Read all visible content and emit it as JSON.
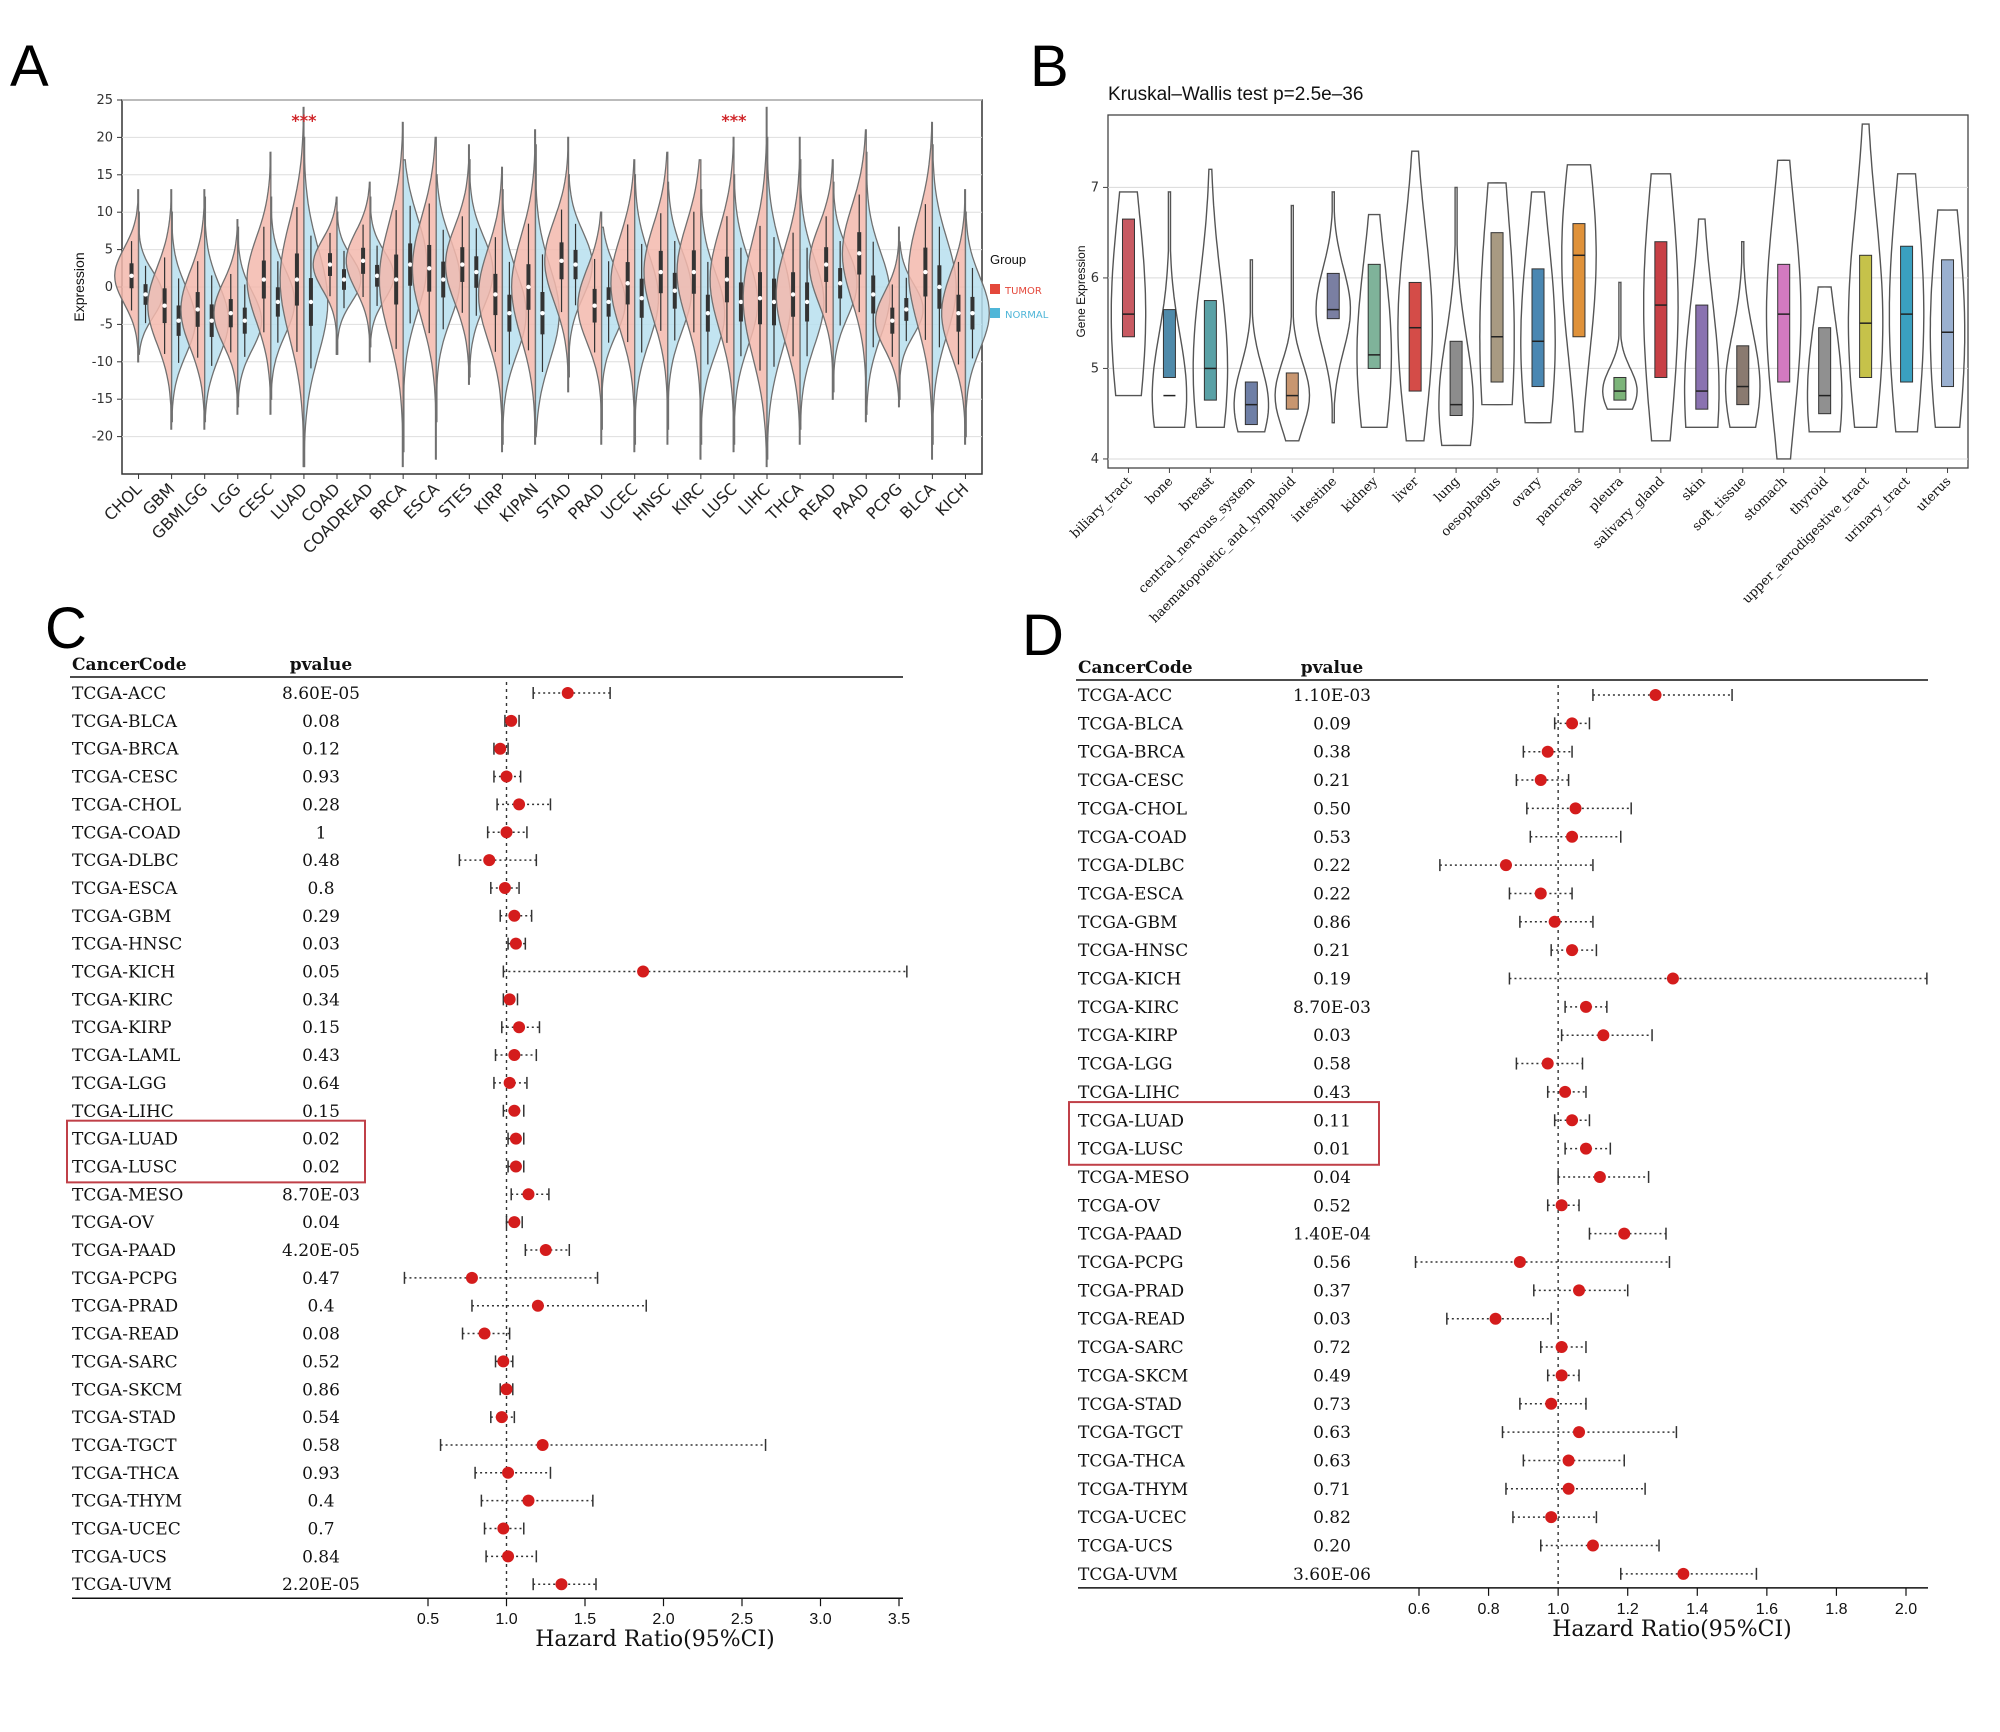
{
  "colors": {
    "tumor": "#e4483b",
    "tumor_fill": "#f3b9ad",
    "normal": "#4fb6d8",
    "normal_fill": "#b7dfee",
    "highlight": "#d0262a",
    "point": "#d41c1c",
    "box": "#c85a62"
  },
  "chart_data": [
    {
      "panel": "A",
      "type": "violin",
      "ylabel": "Expression",
      "ylim": [
        -25,
        25
      ],
      "yticks": [
        -20,
        -15,
        -10,
        -5,
        0,
        5,
        10,
        15,
        20,
        25
      ],
      "grid": true,
      "legend": {
        "title": "Group",
        "items": [
          "TUMOR",
          "NORMAL"
        ],
        "position": "right"
      },
      "highlighted": [
        "LUAD",
        "LUSC"
      ],
      "annotation": "***",
      "categories": [
        "CHOL",
        "GBM",
        "GBMLGG",
        "LGG",
        "CESC",
        "LUAD",
        "COAD",
        "COADREAD",
        "BRCA",
        "ESCA",
        "STES",
        "KIRP",
        "KIPAN",
        "STAD",
        "PRAD",
        "UCEC",
        "HNSC",
        "KIRC",
        "LUSC",
        "LIHC",
        "THCA",
        "READ",
        "PAAD",
        "PCPG",
        "BLCA",
        "KICH"
      ],
      "series": [
        {
          "name": "TUMOR",
          "median": [
            1.5,
            -2.5,
            -3.0,
            -3.5,
            1.0,
            1.0,
            3.0,
            3.5,
            1.0,
            2.5,
            3.0,
            -1.0,
            0.0,
            3.5,
            -2.5,
            0.5,
            2.0,
            2.0,
            1.0,
            -1.5,
            -1.0,
            3.0,
            4.5,
            -4.5,
            2.0,
            -3.5
          ],
          "min": [
            -10,
            -19,
            -19,
            -17,
            -17,
            -24,
            -9,
            -10,
            -24,
            -23,
            -13,
            -22,
            -21,
            -14,
            -21,
            -22,
            -21,
            -23,
            -22,
            -24,
            -21,
            -15,
            -18,
            -16,
            -23,
            -21
          ],
          "max": [
            13,
            13,
            13,
            9,
            18,
            24,
            12,
            14,
            22,
            20,
            19,
            16,
            21,
            20,
            10,
            17,
            18,
            17,
            20,
            24,
            20,
            17,
            21,
            8,
            22,
            13
          ]
        },
        {
          "name": "NORMAL",
          "median": [
            -1.0,
            -4.5,
            -4.5,
            -4.5,
            -2.0,
            -2.0,
            1.0,
            1.5,
            3.0,
            1.0,
            2.0,
            -3.5,
            -3.5,
            3.0,
            -2.0,
            -1.5,
            -0.5,
            -3.5,
            -2.0,
            -2.0,
            -2.0,
            0.5,
            -1.0,
            -3.0,
            0.0,
            -3.5
          ],
          "min": [
            -9,
            -18,
            -18,
            -16,
            -15,
            -24,
            -9,
            -8,
            -22,
            -18,
            -12,
            -21,
            -20,
            -12,
            -19,
            -21,
            -19,
            -21,
            -21,
            -23,
            -19,
            -14,
            -17,
            -15,
            -21,
            -20
          ],
          "max": [
            10,
            10,
            12,
            8,
            12,
            20,
            10,
            12,
            17,
            15,
            17,
            13,
            19,
            15,
            8,
            15,
            14,
            13,
            15,
            20,
            17,
            14,
            18,
            6,
            19,
            10
          ]
        }
      ]
    },
    {
      "panel": "B",
      "type": "box",
      "title": "Kruskal–Wallis test p=2.5e–36",
      "ylabel": "Gene Expression",
      "ylim": [
        3.9,
        7.8
      ],
      "yticks": [
        4,
        5,
        6,
        7
      ],
      "grid": true,
      "categories": [
        "biliary_tract",
        "bone",
        "breast",
        "central_nervous_system",
        "haematopoietic_and_lymphoid",
        "intestine",
        "kidney",
        "liver",
        "lung",
        "oesophagus",
        "ovary",
        "pancreas",
        "pleura",
        "salivary_gland",
        "skin",
        "soft_tissue",
        "stomach",
        "thyroid",
        "upper_aerodigestive_tract",
        "urinary_tract",
        "uterus"
      ],
      "box_colors": [
        "#c85a62",
        "#4f8aaa",
        "#5aa1a6",
        "#6f7fa6",
        "#c89670",
        "#7a7fa2",
        "#7fb39a",
        "#d44c48",
        "#8c8c8c",
        "#a89a82",
        "#4a87b2",
        "#e0923a",
        "#7cb479",
        "#c84046",
        "#8a72b0",
        "#8a7a70",
        "#d27ac0",
        "#909090",
        "#c6c24a",
        "#3aa0c0",
        "#9ab0d0"
      ],
      "q1": [
        5.35,
        4.9,
        4.65,
        4.38,
        4.55,
        5.55,
        5.0,
        4.75,
        4.48,
        4.85,
        4.8,
        5.35,
        4.65,
        4.9,
        4.55,
        4.6,
        4.85,
        4.5,
        4.9,
        4.85,
        4.8
      ],
      "median": [
        5.6,
        4.7,
        5.0,
        4.6,
        4.7,
        5.65,
        5.15,
        5.45,
        4.6,
        5.35,
        5.3,
        6.25,
        4.75,
        5.7,
        4.75,
        4.8,
        5.6,
        4.7,
        5.5,
        5.6,
        5.4
      ],
      "q3": [
        6.65,
        5.65,
        5.75,
        4.85,
        4.95,
        6.05,
        6.15,
        5.95,
        5.3,
        6.5,
        6.1,
        6.6,
        4.9,
        6.4,
        5.7,
        5.25,
        6.15,
        5.45,
        6.25,
        6.35,
        6.2
      ],
      "min": [
        4.7,
        4.35,
        4.35,
        4.3,
        4.2,
        4.4,
        4.35,
        4.2,
        4.15,
        4.6,
        4.4,
        4.3,
        4.55,
        4.2,
        4.35,
        4.35,
        4.0,
        4.3,
        4.35,
        4.3,
        4.35
      ],
      "max": [
        6.95,
        6.95,
        7.2,
        6.2,
        6.8,
        6.95,
        6.7,
        7.4,
        7.0,
        7.05,
        6.95,
        7.25,
        5.95,
        7.15,
        6.65,
        6.4,
        7.3,
        5.9,
        7.7,
        7.15,
        6.75
      ]
    },
    {
      "panel": "C",
      "type": "forest",
      "col_header_1": "CancerCode",
      "col_header_2": "pvalue",
      "xlabel": "Hazard Ratio(95%CI)",
      "xlim": [
        0.35,
        3.55
      ],
      "xticks": [
        0.5,
        1.0,
        1.5,
        2.0,
        2.5,
        3.0,
        3.5
      ],
      "tick_labels": [
        "0.5",
        "1.0",
        "1.5",
        "2.0",
        "2.5",
        "3.0",
        "3.5"
      ],
      "reference": 1.0,
      "highlighted": [
        "TCGA-LUAD",
        "TCGA-LUSC"
      ],
      "rows": [
        {
          "code": "TCGA-ACC",
          "pvalue": "8.60E-05",
          "hr": 1.39,
          "lo": 1.17,
          "hi": 1.66
        },
        {
          "code": "TCGA-BLCA",
          "pvalue": "0.08",
          "hr": 1.03,
          "lo": 0.99,
          "hi": 1.08
        },
        {
          "code": "TCGA-BRCA",
          "pvalue": "0.12",
          "hr": 0.96,
          "lo": 0.92,
          "hi": 1.01
        },
        {
          "code": "TCGA-CESC",
          "pvalue": "0.93",
          "hr": 1.0,
          "lo": 0.92,
          "hi": 1.09
        },
        {
          "code": "TCGA-CHOL",
          "pvalue": "0.28",
          "hr": 1.08,
          "lo": 0.94,
          "hi": 1.28
        },
        {
          "code": "TCGA-COAD",
          "pvalue": "1",
          "hr": 1.0,
          "lo": 0.88,
          "hi": 1.13
        },
        {
          "code": "TCGA-DLBC",
          "pvalue": "0.48",
          "hr": 0.89,
          "lo": 0.7,
          "hi": 1.19
        },
        {
          "code": "TCGA-ESCA",
          "pvalue": "0.8",
          "hr": 0.99,
          "lo": 0.9,
          "hi": 1.08
        },
        {
          "code": "TCGA-GBM",
          "pvalue": "0.29",
          "hr": 1.05,
          "lo": 0.96,
          "hi": 1.16
        },
        {
          "code": "TCGA-HNSC",
          "pvalue": "0.03",
          "hr": 1.06,
          "lo": 1.01,
          "hi": 1.12
        },
        {
          "code": "TCGA-KICH",
          "pvalue": "0.05",
          "hr": 1.87,
          "lo": 0.98,
          "hi": 3.55
        },
        {
          "code": "TCGA-KIRC",
          "pvalue": "0.34",
          "hr": 1.02,
          "lo": 0.98,
          "hi": 1.07
        },
        {
          "code": "TCGA-KIRP",
          "pvalue": "0.15",
          "hr": 1.08,
          "lo": 0.97,
          "hi": 1.21
        },
        {
          "code": "TCGA-LAML",
          "pvalue": "0.43",
          "hr": 1.05,
          "lo": 0.93,
          "hi": 1.19
        },
        {
          "code": "TCGA-LGG",
          "pvalue": "0.64",
          "hr": 1.02,
          "lo": 0.92,
          "hi": 1.13
        },
        {
          "code": "TCGA-LIHC",
          "pvalue": "0.15",
          "hr": 1.05,
          "lo": 0.98,
          "hi": 1.11
        },
        {
          "code": "TCGA-LUAD",
          "pvalue": "0.02",
          "hr": 1.06,
          "lo": 1.01,
          "hi": 1.11
        },
        {
          "code": "TCGA-LUSC",
          "pvalue": "0.02",
          "hr": 1.06,
          "lo": 1.01,
          "hi": 1.11
        },
        {
          "code": "TCGA-MESO",
          "pvalue": "8.70E-03",
          "hr": 1.14,
          "lo": 1.03,
          "hi": 1.27
        },
        {
          "code": "TCGA-OV",
          "pvalue": "0.04",
          "hr": 1.05,
          "lo": 1.0,
          "hi": 1.1
        },
        {
          "code": "TCGA-PAAD",
          "pvalue": "4.20E-05",
          "hr": 1.25,
          "lo": 1.12,
          "hi": 1.4
        },
        {
          "code": "TCGA-PCPG",
          "pvalue": "0.47",
          "hr": 0.78,
          "lo": 0.35,
          "hi": 1.58
        },
        {
          "code": "TCGA-PRAD",
          "pvalue": "0.4",
          "hr": 1.2,
          "lo": 0.78,
          "hi": 1.89
        },
        {
          "code": "TCGA-READ",
          "pvalue": "0.08",
          "hr": 0.86,
          "lo": 0.72,
          "hi": 1.02
        },
        {
          "code": "TCGA-SARC",
          "pvalue": "0.52",
          "hr": 0.98,
          "lo": 0.93,
          "hi": 1.04
        },
        {
          "code": "TCGA-SKCM",
          "pvalue": "0.86",
          "hr": 1.0,
          "lo": 0.96,
          "hi": 1.04
        },
        {
          "code": "TCGA-STAD",
          "pvalue": "0.54",
          "hr": 0.97,
          "lo": 0.9,
          "hi": 1.05
        },
        {
          "code": "TCGA-TGCT",
          "pvalue": "0.58",
          "hr": 1.23,
          "lo": 0.58,
          "hi": 2.65
        },
        {
          "code": "TCGA-THCA",
          "pvalue": "0.93",
          "hr": 1.01,
          "lo": 0.8,
          "hi": 1.28
        },
        {
          "code": "TCGA-THYM",
          "pvalue": "0.4",
          "hr": 1.14,
          "lo": 0.84,
          "hi": 1.55
        },
        {
          "code": "TCGA-UCEC",
          "pvalue": "0.7",
          "hr": 0.98,
          "lo": 0.86,
          "hi": 1.11
        },
        {
          "code": "TCGA-UCS",
          "pvalue": "0.84",
          "hr": 1.01,
          "lo": 0.87,
          "hi": 1.19
        },
        {
          "code": "TCGA-UVM",
          "pvalue": "2.20E-05",
          "hr": 1.35,
          "lo": 1.17,
          "hi": 1.57
        }
      ]
    },
    {
      "panel": "D",
      "type": "forest",
      "col_header_1": "CancerCode",
      "col_header_2": "pvalue",
      "xlabel": "Hazard Ratio(95%CI)",
      "xlim": [
        0.6,
        2.06
      ],
      "xticks": [
        0.6,
        0.8,
        1.0,
        1.2,
        1.4,
        1.6,
        1.8,
        2.0
      ],
      "tick_labels": [
        "0.6",
        "0.8",
        "1.0",
        "1.2",
        "1.4",
        "1.6",
        "1.8",
        "2.0"
      ],
      "reference": 1.0,
      "highlighted": [
        "TCGA-LUAD",
        "TCGA-LUSC"
      ],
      "rows": [
        {
          "code": "TCGA-ACC",
          "pvalue": "1.10E-03",
          "hr": 1.28,
          "lo": 1.1,
          "hi": 1.5
        },
        {
          "code": "TCGA-BLCA",
          "pvalue": "0.09",
          "hr": 1.04,
          "lo": 0.99,
          "hi": 1.09
        },
        {
          "code": "TCGA-BRCA",
          "pvalue": "0.38",
          "hr": 0.97,
          "lo": 0.9,
          "hi": 1.04
        },
        {
          "code": "TCGA-CESC",
          "pvalue": "0.21",
          "hr": 0.95,
          "lo": 0.88,
          "hi": 1.03
        },
        {
          "code": "TCGA-CHOL",
          "pvalue": "0.50",
          "hr": 1.05,
          "lo": 0.91,
          "hi": 1.21
        },
        {
          "code": "TCGA-COAD",
          "pvalue": "0.53",
          "hr": 1.04,
          "lo": 0.92,
          "hi": 1.18
        },
        {
          "code": "TCGA-DLBC",
          "pvalue": "0.22",
          "hr": 0.85,
          "lo": 0.66,
          "hi": 1.1
        },
        {
          "code": "TCGA-ESCA",
          "pvalue": "0.22",
          "hr": 0.95,
          "lo": 0.86,
          "hi": 1.04
        },
        {
          "code": "TCGA-GBM",
          "pvalue": "0.86",
          "hr": 0.99,
          "lo": 0.89,
          "hi": 1.1
        },
        {
          "code": "TCGA-HNSC",
          "pvalue": "0.21",
          "hr": 1.04,
          "lo": 0.98,
          "hi": 1.11
        },
        {
          "code": "TCGA-KICH",
          "pvalue": "0.19",
          "hr": 1.33,
          "lo": 0.86,
          "hi": 2.06
        },
        {
          "code": "TCGA-KIRC",
          "pvalue": "8.70E-03",
          "hr": 1.08,
          "lo": 1.02,
          "hi": 1.14
        },
        {
          "code": "TCGA-KIRP",
          "pvalue": "0.03",
          "hr": 1.13,
          "lo": 1.01,
          "hi": 1.27
        },
        {
          "code": "TCGA-LGG",
          "pvalue": "0.58",
          "hr": 0.97,
          "lo": 0.88,
          "hi": 1.07
        },
        {
          "code": "TCGA-LIHC",
          "pvalue": "0.43",
          "hr": 1.02,
          "lo": 0.97,
          "hi": 1.08
        },
        {
          "code": "TCGA-LUAD",
          "pvalue": "0.11",
          "hr": 1.04,
          "lo": 0.99,
          "hi": 1.09
        },
        {
          "code": "TCGA-LUSC",
          "pvalue": "0.01",
          "hr": 1.08,
          "lo": 1.02,
          "hi": 1.15
        },
        {
          "code": "TCGA-MESO",
          "pvalue": "0.04",
          "hr": 1.12,
          "lo": 1.0,
          "hi": 1.26
        },
        {
          "code": "TCGA-OV",
          "pvalue": "0.52",
          "hr": 1.01,
          "lo": 0.97,
          "hi": 1.06
        },
        {
          "code": "TCGA-PAAD",
          "pvalue": "1.40E-04",
          "hr": 1.19,
          "lo": 1.09,
          "hi": 1.31
        },
        {
          "code": "TCGA-PCPG",
          "pvalue": "0.56",
          "hr": 0.89,
          "lo": 0.59,
          "hi": 1.32
        },
        {
          "code": "TCGA-PRAD",
          "pvalue": "0.37",
          "hr": 1.06,
          "lo": 0.93,
          "hi": 1.2
        },
        {
          "code": "TCGA-READ",
          "pvalue": "0.03",
          "hr": 0.82,
          "lo": 0.68,
          "hi": 0.98
        },
        {
          "code": "TCGA-SARC",
          "pvalue": "0.72",
          "hr": 1.01,
          "lo": 0.95,
          "hi": 1.08
        },
        {
          "code": "TCGA-SKCM",
          "pvalue": "0.49",
          "hr": 1.01,
          "lo": 0.97,
          "hi": 1.06
        },
        {
          "code": "TCGA-STAD",
          "pvalue": "0.73",
          "hr": 0.98,
          "lo": 0.89,
          "hi": 1.08
        },
        {
          "code": "TCGA-TGCT",
          "pvalue": "0.63",
          "hr": 1.06,
          "lo": 0.84,
          "hi": 1.34
        },
        {
          "code": "TCGA-THCA",
          "pvalue": "0.63",
          "hr": 1.03,
          "lo": 0.9,
          "hi": 1.19
        },
        {
          "code": "TCGA-THYM",
          "pvalue": "0.71",
          "hr": 1.03,
          "lo": 0.85,
          "hi": 1.25
        },
        {
          "code": "TCGA-UCEC",
          "pvalue": "0.82",
          "hr": 0.98,
          "lo": 0.87,
          "hi": 1.11
        },
        {
          "code": "TCGA-UCS",
          "pvalue": "0.20",
          "hr": 1.1,
          "lo": 0.95,
          "hi": 1.29
        },
        {
          "code": "TCGA-UVM",
          "pvalue": "3.60E-06",
          "hr": 1.36,
          "lo": 1.18,
          "hi": 1.57
        }
      ]
    }
  ]
}
